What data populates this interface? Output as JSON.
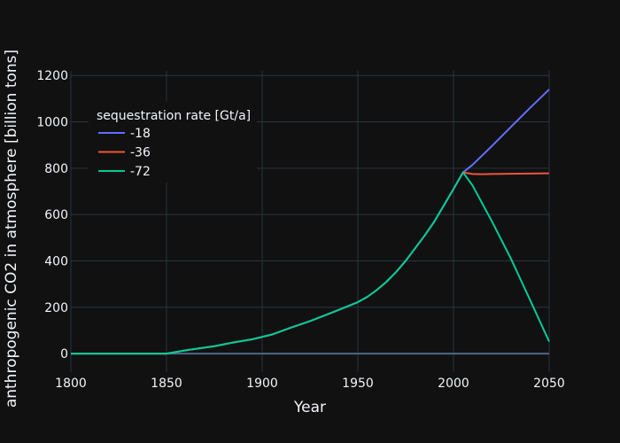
{
  "chart_data": {
    "type": "line",
    "xlabel": "Year",
    "ylabel": "anthropogenic CO2 in atmosphere [billion tons]",
    "xlim": [
      1800,
      2050
    ],
    "ylim": [
      -80,
      1220
    ],
    "xticks": [
      1800,
      1850,
      1900,
      1950,
      2000,
      2050
    ],
    "yticks": [
      0,
      200,
      400,
      600,
      800,
      1000,
      1200
    ],
    "grid": true,
    "legend": {
      "title": "sequestration rate [Gt/a]",
      "placement": "top-left"
    },
    "shared": {
      "x": [
        1800,
        1850,
        1860,
        1875,
        1885,
        1895,
        1905,
        1915,
        1925,
        1935,
        1945,
        1950,
        1955,
        1960,
        1965,
        1970,
        1975,
        1980,
        1985,
        1990,
        1995,
        2000,
        2005
      ],
      "y": [
        0,
        0,
        14,
        32,
        48,
        62,
        82,
        112,
        140,
        172,
        205,
        222,
        245,
        275,
        310,
        352,
        400,
        455,
        510,
        570,
        640,
        710,
        782
      ]
    },
    "series": [
      {
        "name": "-18",
        "color": "#636efa",
        "x": [
          2010,
          2020,
          2030,
          2040,
          2050
        ],
        "y": [
          815,
          895,
          978,
          1060,
          1140
        ]
      },
      {
        "name": "-36",
        "color": "#ef553b",
        "x": [
          2010,
          2015,
          2020,
          2030,
          2040,
          2050
        ],
        "y": [
          775,
          774,
          775,
          776,
          777,
          778
        ]
      },
      {
        "name": "-72",
        "color": "#00cc96",
        "x": [
          2010,
          2020,
          2030,
          2040,
          2050
        ],
        "y": [
          725,
          572,
          410,
          232,
          52
        ]
      }
    ]
  }
}
